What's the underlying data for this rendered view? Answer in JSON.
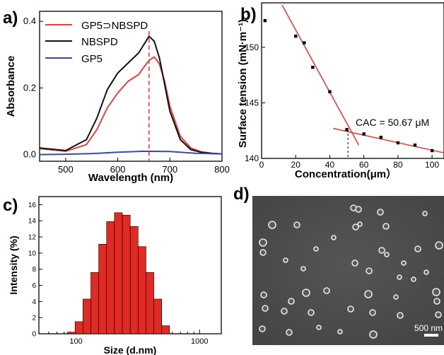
{
  "panel_labels": [
    "a)",
    "b)",
    "c)",
    "d)"
  ],
  "colors": {
    "red": "#e8413a",
    "black": "#111111",
    "blue": "#3a4aa8",
    "bar": "#e02a22",
    "tem_bg": "#4d4d4d",
    "particle": "#e9e9e9"
  },
  "chart_data": [
    {
      "panel": "a)",
      "type": "line",
      "xlabel": "Wavelength (nm)",
      "ylabel": "Absorbance",
      "xlim": [
        450,
        800
      ],
      "ylim": [
        -0.02,
        0.43
      ],
      "xticks": [
        500,
        600,
        700,
        800
      ],
      "yticks": [
        0.0,
        0.2,
        0.4
      ],
      "legend_position": "top-left",
      "series": [
        {
          "name": "GP5⊃NBSPD",
          "color": "#e8413a",
          "x": [
            450,
            500,
            540,
            560,
            580,
            600,
            620,
            640,
            650,
            660,
            670,
            680,
            690,
            700,
            720,
            740,
            760,
            780,
            800
          ],
          "y": [
            0.018,
            0.01,
            0.03,
            0.075,
            0.14,
            0.185,
            0.22,
            0.24,
            0.262,
            0.283,
            0.293,
            0.272,
            0.22,
            0.145,
            0.055,
            0.02,
            0.008,
            0.004,
            0.002
          ]
        },
        {
          "name": "NBSPD",
          "color": "#111111",
          "x": [
            450,
            500,
            540,
            560,
            580,
            600,
            620,
            640,
            650,
            660,
            670,
            680,
            690,
            700,
            720,
            740,
            760,
            780,
            800
          ],
          "y": [
            0.02,
            0.012,
            0.045,
            0.11,
            0.195,
            0.245,
            0.275,
            0.305,
            0.33,
            0.355,
            0.34,
            0.29,
            0.21,
            0.13,
            0.045,
            0.015,
            0.007,
            0.004,
            0.002
          ]
        },
        {
          "name": "GP5",
          "color": "#3a4aa8",
          "x": [
            450,
            500,
            550,
            600,
            650,
            700,
            750,
            800
          ],
          "y": [
            0.0,
            0.001,
            0.003,
            0.007,
            0.01,
            0.009,
            0.004,
            0.002
          ]
        }
      ],
      "marker_line_x": 660
    },
    {
      "panel": "b)",
      "type": "scatter",
      "xlabel": "Concentration(μm）",
      "ylabel": "Surface tension (mN·m⁻¹)",
      "xlim": [
        0,
        107
      ],
      "ylim": [
        140,
        154
      ],
      "xticks": [
        0,
        20,
        40,
        60,
        80,
        100
      ],
      "yticks": [
        140,
        145,
        150
      ],
      "annotation": "CAC = 50.67 μM",
      "cac_x": 50.67,
      "points": {
        "x": [
          2,
          20,
          25,
          30,
          40,
          50,
          60,
          70,
          80,
          90,
          100
        ],
        "y": [
          152.4,
          151.0,
          150.4,
          148.2,
          146.0,
          142.6,
          142.2,
          141.9,
          141.4,
          141.2,
          140.7
        ]
      },
      "fit_lines": [
        {
          "x": [
            12,
            57
          ],
          "y": [
            153.8,
            141.2
          ]
        },
        {
          "x": [
            42,
            107
          ],
          "y": [
            142.7,
            140.5
          ]
        }
      ]
    },
    {
      "panel": "c)",
      "type": "bar",
      "xlabel": "Size (d.nm)",
      "ylabel": "Intensity (%)",
      "xscale": "log",
      "xlim": [
        50,
        1500
      ],
      "ylim": [
        0,
        17
      ],
      "xticks": [
        100,
        1000
      ],
      "yticks": [
        0,
        2,
        4,
        6,
        8,
        10,
        12,
        14,
        16
      ],
      "categories": [
        91.28,
        105.7,
        122.4,
        141.8,
        164.2,
        190.1,
        220.2,
        255.0,
        295.3,
        342.0,
        396.1,
        458.7,
        531.2
      ],
      "values": [
        0.2,
        1.5,
        4.3,
        7.6,
        11.1,
        13.9,
        15.0,
        14.7,
        13.3,
        10.8,
        7.6,
        4.3,
        1.0
      ]
    }
  ],
  "tem": {
    "panel": "d)",
    "scale_bar_label": "500 nm"
  }
}
